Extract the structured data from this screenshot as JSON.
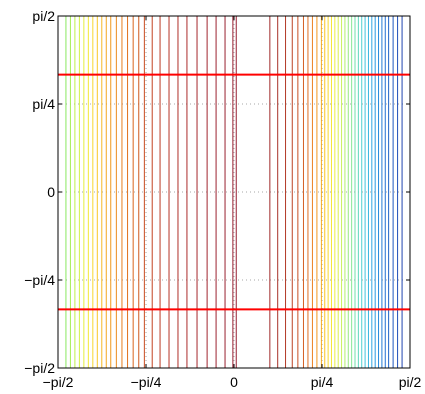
{
  "chart_data": {
    "type": "line",
    "title": "",
    "xlabel": "",
    "ylabel": "",
    "xlim": [
      -1.5708,
      1.5708
    ],
    "ylim": [
      -1.5708,
      1.5708
    ],
    "grid": true,
    "x_ticks": [
      {
        "value": -1.5708,
        "label": "−pi/2"
      },
      {
        "value": -0.7854,
        "label": "−pi/4"
      },
      {
        "value": 0,
        "label": "0"
      },
      {
        "value": 0.7854,
        "label": "pi/4"
      },
      {
        "value": 1.5708,
        "label": "pi/2"
      }
    ],
    "y_ticks": [
      {
        "value": -1.5708,
        "label": "−pi/2"
      },
      {
        "value": -0.7854,
        "label": "−pi/4"
      },
      {
        "value": 0,
        "label": "0"
      },
      {
        "value": 0.7854,
        "label": "pi/4"
      },
      {
        "value": 1.5708,
        "label": "pi/2"
      }
    ],
    "vertical_contours_x": [
      -1.5,
      -1.46,
      -1.42,
      -1.38,
      -1.34,
      -1.3,
      -1.26,
      -1.22,
      -1.18,
      -1.14,
      -1.1,
      -1.05,
      -1.0,
      -0.95,
      -0.9,
      -0.85,
      -0.8,
      -0.73,
      -0.66,
      -0.58,
      -0.5,
      -0.42,
      -0.33,
      -0.24,
      -0.16,
      -0.08,
      -0.01,
      0.02,
      0.32,
      0.39,
      0.46,
      0.52,
      0.57,
      0.62,
      0.66,
      0.7,
      0.74,
      0.78,
      0.81,
      0.84,
      0.87,
      0.9,
      0.93,
      0.96,
      0.99,
      1.02,
      1.05,
      1.08,
      1.11,
      1.14,
      1.17,
      1.2,
      1.23,
      1.26,
      1.29,
      1.32,
      1.35,
      1.38,
      1.42,
      1.46,
      1.5
    ],
    "vertical_contour_colors": [
      "#88e860",
      "#a4ec54",
      "#bef04a",
      "#d2f043",
      "#e4ee3c",
      "#f2e836",
      "#f8d82e",
      "#f8c828",
      "#f6b824",
      "#f4a820",
      "#f0981c",
      "#ec8a1c",
      "#e67c1c",
      "#e0701c",
      "#d8641e",
      "#d0581e",
      "#c84c20",
      "#c24222",
      "#bc3a24",
      "#b63426",
      "#b02e28",
      "#aa2a2a",
      "#a4262c",
      "#a0242e",
      "#9c2230",
      "#982030",
      "#961e30",
      "#961e30",
      "#a02a2a",
      "#a83028",
      "#b23826",
      "#bc4224",
      "#c85024",
      "#d45e22",
      "#e06e22",
      "#ea8020",
      "#f2961e",
      "#f6ae20",
      "#f8c424",
      "#f8d82a",
      "#f4e636",
      "#eaee42",
      "#dcf04e",
      "#c8f05c",
      "#b0ee6c",
      "#98ea80",
      "#84e694",
      "#70e0aa",
      "#5ed8be",
      "#4ecece",
      "#42c2da",
      "#38b4e0",
      "#30a6e2",
      "#2a98e0",
      "#268adc",
      "#227cd6",
      "#2070d0",
      "#1e64c8",
      "#1e58c0",
      "#1e4eb8",
      "#1e44b0"
    ],
    "horizontal_lines_y": [
      1.0472,
      -1.0472
    ],
    "horizontal_line_color": "#ff0000"
  }
}
